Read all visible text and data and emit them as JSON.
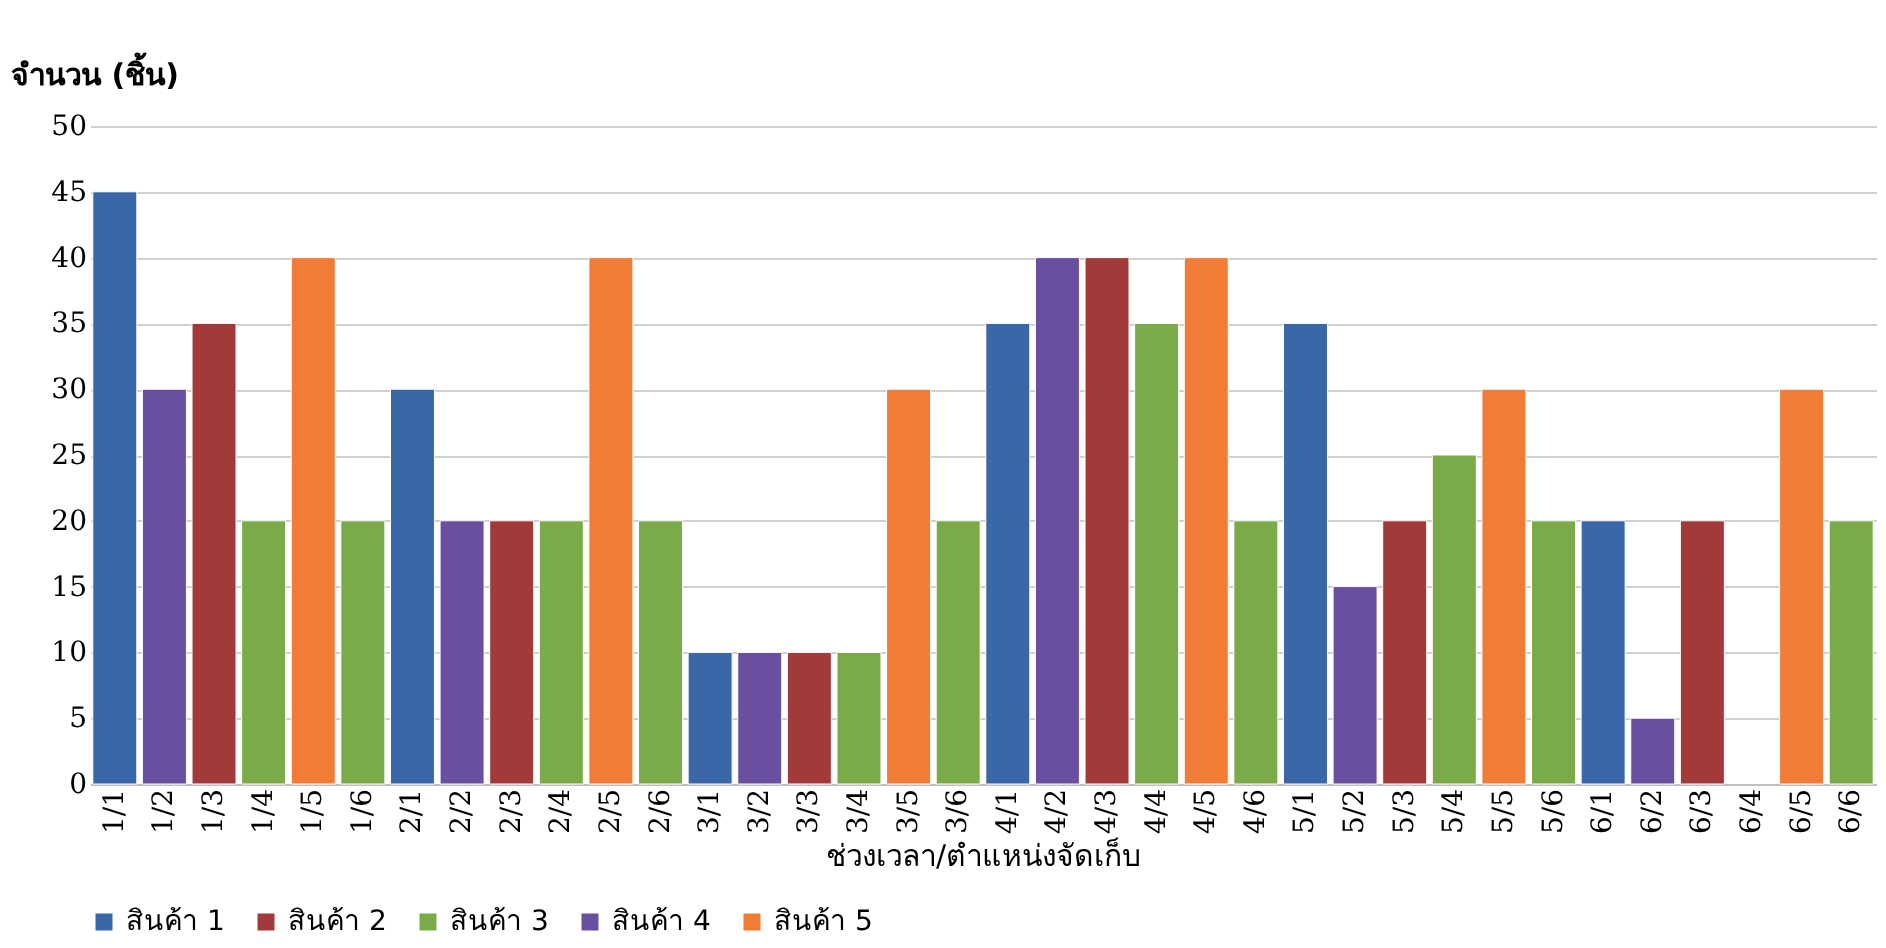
{
  "chart_data": {
    "type": "bar",
    "ylabel": "จำนวน (ชิ้น)",
    "xlabel": "ช่วงเวลา/ตำแหน่งจัดเก็บ",
    "categories": [
      "1/1",
      "1/2",
      "1/3",
      "1/4",
      "1/5",
      "1/6",
      "2/1",
      "2/2",
      "2/3",
      "2/4",
      "2/5",
      "2/6",
      "3/1",
      "3/2",
      "3/3",
      "3/4",
      "3/5",
      "3/6",
      "4/1",
      "4/2",
      "4/3",
      "4/4",
      "4/5",
      "4/6",
      "5/1",
      "5/2",
      "5/3",
      "5/4",
      "5/5",
      "5/6",
      "6/1",
      "6/2",
      "6/3",
      "6/4",
      "6/5",
      "6/6"
    ],
    "series": [
      {
        "name": "สินค้า 1",
        "color": "#3a67a8",
        "values": [
          45,
          null,
          null,
          null,
          null,
          null,
          30,
          null,
          null,
          null,
          null,
          null,
          10,
          null,
          null,
          null,
          null,
          null,
          35,
          null,
          null,
          null,
          null,
          null,
          35,
          null,
          null,
          null,
          null,
          null,
          20,
          null,
          null,
          null,
          null,
          null
        ]
      },
      {
        "name": "สินค้า 2",
        "color": "#a33a3a",
        "values": [
          null,
          null,
          35,
          null,
          null,
          null,
          null,
          null,
          20,
          null,
          null,
          null,
          null,
          null,
          10,
          null,
          null,
          null,
          null,
          null,
          40,
          null,
          null,
          null,
          null,
          null,
          20,
          null,
          null,
          null,
          null,
          null,
          20,
          null,
          null,
          null
        ]
      },
      {
        "name": "สินค้า 3",
        "color": "#7aab48",
        "values": [
          null,
          null,
          null,
          20,
          null,
          20,
          null,
          null,
          null,
          20,
          null,
          20,
          null,
          null,
          null,
          10,
          null,
          20,
          null,
          null,
          null,
          35,
          null,
          20,
          null,
          null,
          null,
          25,
          null,
          20,
          null,
          null,
          null,
          null,
          null,
          20
        ]
      },
      {
        "name": "สินค้า 4",
        "color": "#6a4ea0",
        "values": [
          null,
          30,
          null,
          null,
          null,
          null,
          null,
          20,
          null,
          null,
          null,
          null,
          null,
          10,
          null,
          null,
          null,
          null,
          null,
          40,
          null,
          null,
          null,
          null,
          null,
          15,
          null,
          null,
          null,
          null,
          null,
          5,
          null,
          null,
          null,
          null
        ]
      },
      {
        "name": "สินค้า 5",
        "color": "#f07c35",
        "values": [
          null,
          null,
          null,
          null,
          40,
          null,
          null,
          null,
          null,
          null,
          40,
          null,
          null,
          null,
          null,
          null,
          30,
          null,
          null,
          null,
          null,
          null,
          40,
          null,
          null,
          null,
          null,
          null,
          30,
          null,
          null,
          null,
          null,
          null,
          30,
          null
        ]
      }
    ],
    "ylim": [
      0,
      50
    ],
    "yticks": [
      0,
      5,
      10,
      15,
      20,
      25,
      30,
      35,
      40,
      45,
      50
    ],
    "grid": "y",
    "legend": "bottom"
  }
}
